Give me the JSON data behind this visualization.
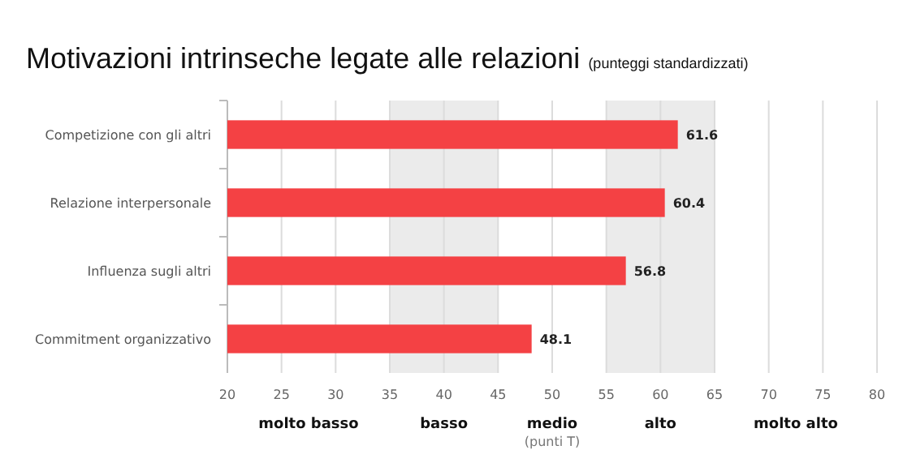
{
  "chart_data": {
    "type": "bar",
    "orientation": "horizontal",
    "title": "Motivazioni intrinseche legate alle relazioni",
    "subtitle": "(punteggi standardizzati)",
    "xlabel": "(punti T)",
    "categories": [
      "Competizione con gli altri",
      "Relazione interpersonale",
      "Influenza sugli altri",
      "Commitment organizzativo"
    ],
    "values": [
      61.6,
      60.4,
      56.8,
      48.1
    ],
    "color": "#f44144",
    "data_labels": true,
    "xlim": [
      20,
      80
    ],
    "xticks": [
      20,
      25,
      30,
      35,
      40,
      45,
      50,
      55,
      60,
      65,
      70,
      75,
      80
    ],
    "grid": "x",
    "bands": [
      {
        "axis": "x",
        "from": 35,
        "to": 45,
        "label": "basso",
        "color": "#ebebeb"
      },
      {
        "axis": "x",
        "from": 55,
        "to": 65,
        "label": "alto",
        "color": "#ebebeb"
      }
    ],
    "annotations": [
      "molto basso",
      "medio",
      "molto alto"
    ]
  }
}
